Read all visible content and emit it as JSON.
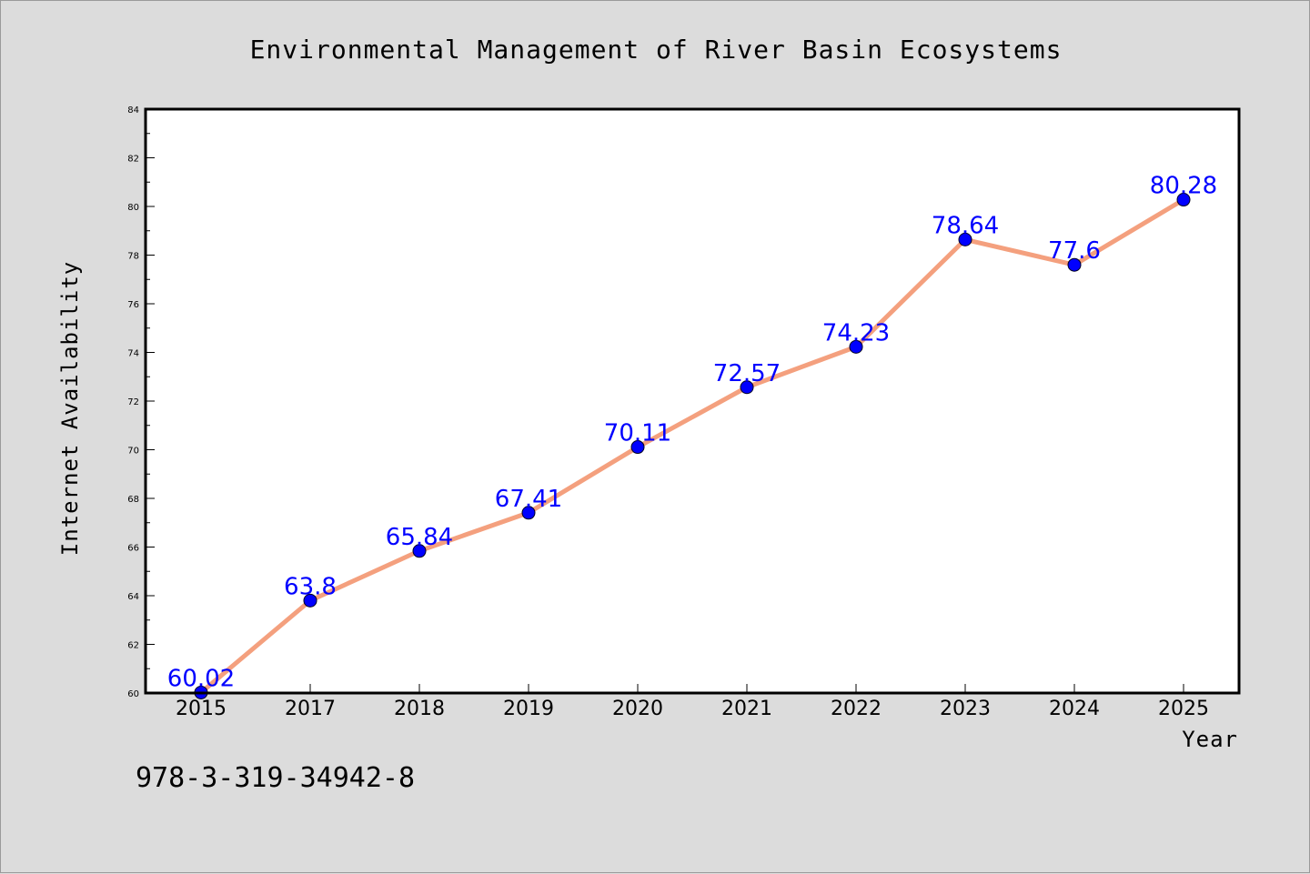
{
  "chart_data": {
    "type": "line",
    "title": "Environmental Management of River Basin Ecosystems",
    "xlabel": "Year",
    "ylabel": "Internet Availability",
    "categories": [
      "2015",
      "2017",
      "2018",
      "2019",
      "2020",
      "2021",
      "2022",
      "2023",
      "2024",
      "2025"
    ],
    "series": [
      {
        "values": [
          60.02,
          63.8,
          65.84,
          67.41,
          70.11,
          72.57,
          74.23,
          78.64,
          77.6,
          80.28
        ],
        "labels": [
          "60.02",
          "63.8",
          "65.84",
          "67.41",
          "70.11",
          "72.57",
          "74.23",
          "78.64",
          "77.6",
          "80.28"
        ],
        "line_color": "#f4a07e",
        "marker_color": "#0000ff"
      }
    ],
    "ylim": [
      60,
      84
    ],
    "yticks": [
      "60",
      "62",
      "64",
      "66",
      "68",
      "70",
      "72",
      "74",
      "76",
      "78",
      "80",
      "82",
      "84"
    ],
    "grid": false,
    "legend": "none"
  },
  "footer": {
    "isbn": "978-3-319-34942-8"
  },
  "colors": {
    "background": "#dcdcdc",
    "plot_background": "#ffffff"
  }
}
